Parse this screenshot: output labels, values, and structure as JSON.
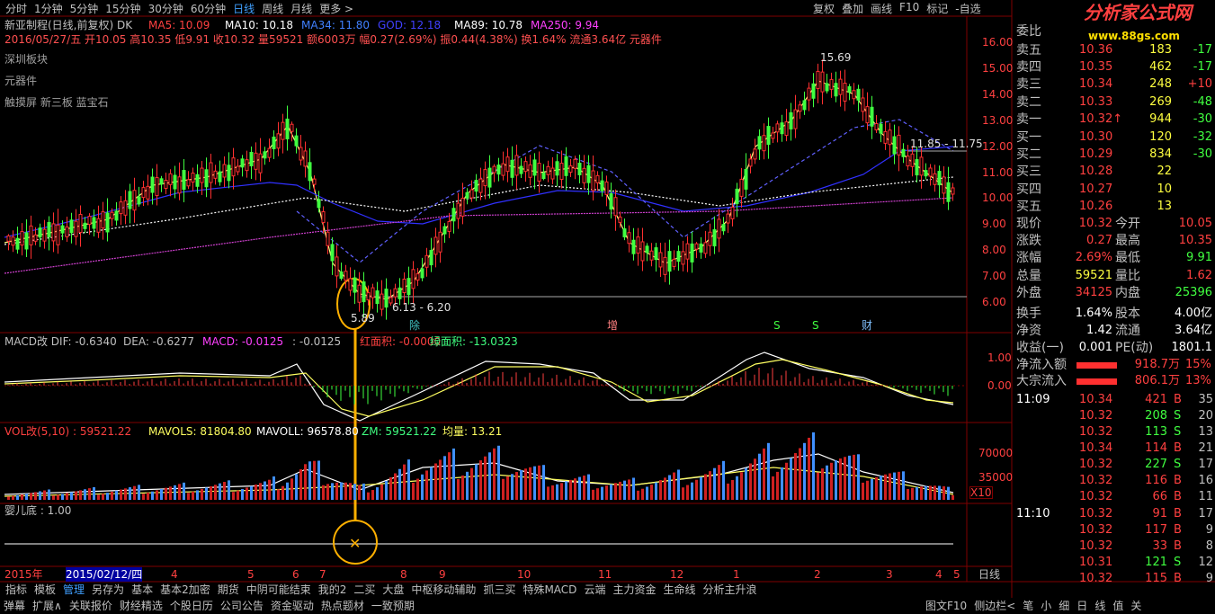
{
  "toolbar": {
    "periods": [
      "分时",
      "1分钟",
      "5分钟",
      "15分钟",
      "30分钟",
      "60分钟",
      "日线",
      "周线",
      "月线",
      "更多 >"
    ],
    "right": [
      "复权",
      "叠加",
      "画线",
      "F10",
      "标记",
      "-自选"
    ]
  },
  "main": {
    "title": "新亚制程(日线,前复权) DK",
    "ma": [
      "MA5: 10.09",
      "MA10: 10.18",
      "MA34: 11.80",
      "GOD: 12.18",
      "MA89: 10.78",
      "MA250: 9.94"
    ],
    "info": "2016/05/27/五 开10.05 高10.35 低9.91 收10.32 量59521 额6003万 幅0.27(2.69%) 振0.44(4.38%) 换1.64% 流通3.64亿 元器件",
    "side_labels": [
      "深圳板块",
      "元器件",
      "触摸屏 新三板 蓝宝石"
    ],
    "annotations": [
      "15.69",
      "11.85 - 11.75",
      "6.13 - 6.20",
      "5.89"
    ],
    "markers": [
      "除",
      "增",
      "S",
      "S",
      "财"
    ],
    "axis": [
      "16.00",
      "15.00",
      "14.00",
      "13.00",
      "12.00",
      "11.00",
      "10.00",
      "9.00",
      "8.00",
      "7.00",
      "6.00"
    ]
  },
  "macd": {
    "header": [
      "MACD改 DIF: -0.6340",
      "DEA: -0.6277",
      "MACD: -0.0125",
      ": -0.0125",
      "红面积: -0.0000",
      "绿面积: -13.0323"
    ],
    "axis": [
      "1.00",
      "0.00"
    ]
  },
  "vol": {
    "header": [
      "VOL改(5,10) : 59521.22",
      "MAVOLS: 81804.80",
      "MAVOLL: 96578.80",
      "ZM: 59521.22",
      "均量: 13.21"
    ],
    "axis": [
      "70000",
      "35000"
    ],
    "scale": "X10"
  },
  "baby": {
    "header": "婴儿底 : 1.00"
  },
  "dates": {
    "labels": [
      "2015年",
      "2015/02/12/四",
      "4",
      "5",
      "6",
      "7",
      "8",
      "9",
      "10",
      "11",
      "12",
      "1",
      "2",
      "3",
      "4",
      "5"
    ],
    "period": "日线"
  },
  "tabs": [
    "指标",
    "模板",
    "管理",
    "另存为",
    "基本",
    "基本2加密",
    "期货",
    "中阴可能结束",
    "我的2",
    "二买",
    "大盘",
    "中枢移动辅助",
    "抓三买",
    "特殊MACD",
    "云端",
    "主力资金",
    "生命线",
    "分析主升浪"
  ],
  "status": {
    "left": [
      "弹幕",
      "扩展∧",
      "关联报价",
      "财经精选",
      "个股日历",
      "公司公告",
      "资金驱动",
      "热点题材",
      "一致预期"
    ],
    "right": [
      "图文F10",
      "侧边栏<",
      "笔",
      "小",
      "细",
      "日",
      "线",
      "值",
      "关"
    ]
  },
  "panel": {
    "logo": "分析家公式网",
    "url": "www.88gs.com",
    "ratio_label": "委比",
    "book": [
      [
        "卖五",
        "10.36",
        "183",
        "-17"
      ],
      [
        "卖四",
        "10.35",
        "462",
        "-17"
      ],
      [
        "卖三",
        "10.34",
        "248",
        "+10"
      ],
      [
        "卖二",
        "10.33",
        "269",
        "-48"
      ],
      [
        "卖一",
        "10.32↑",
        "944",
        "-30"
      ],
      [
        "买一",
        "10.30",
        "120",
        "-32"
      ],
      [
        "买二",
        "10.29",
        "834",
        "-30"
      ],
      [
        "买三",
        "10.28",
        "22",
        ""
      ],
      [
        "买四",
        "10.27",
        "10",
        ""
      ],
      [
        "买五",
        "10.26",
        "13",
        ""
      ]
    ],
    "stats": [
      [
        "现价",
        "10.32",
        "今开",
        "10.05"
      ],
      [
        "涨跌",
        "0.27",
        "最高",
        "10.35"
      ],
      [
        "涨幅",
        "2.69%",
        "最低",
        "9.91"
      ],
      [
        "总量",
        "59521",
        "量比",
        "1.62"
      ],
      [
        "外盘",
        "34125",
        "内盘",
        "25396"
      ],
      [
        "换手",
        "1.64%",
        "股本",
        "4.00亿"
      ],
      [
        "净资",
        "1.42",
        "流通",
        "3.64亿"
      ],
      [
        "收益(一)",
        "0.001",
        "PE(动)",
        "1801.1"
      ]
    ],
    "flow": [
      [
        "净流入额",
        "918.7万",
        "15%"
      ],
      [
        "大宗流入",
        "806.1万",
        "13%"
      ]
    ],
    "ticks": [
      {
        "time": "11:09",
        "rows": [
          [
            "10.34",
            "421",
            "B",
            "35"
          ],
          [
            "10.32",
            "208",
            "S",
            "20"
          ],
          [
            "10.32",
            "113",
            "S",
            "13"
          ],
          [
            "10.34",
            "114",
            "B",
            "21"
          ],
          [
            "10.32",
            "227",
            "S",
            "17"
          ],
          [
            "10.32",
            "116",
            "B",
            "16"
          ],
          [
            "10.32",
            "66",
            "B",
            "11"
          ]
        ]
      },
      {
        "time": "11:10",
        "rows": [
          [
            "10.32",
            "91",
            "B",
            "17"
          ],
          [
            "10.32",
            "117",
            "B",
            "9"
          ],
          [
            "10.32",
            "33",
            "B",
            "8"
          ],
          [
            "10.31",
            "121",
            "S",
            "12"
          ],
          [
            "10.32",
            "115",
            "B",
            "9"
          ]
        ]
      }
    ]
  }
}
